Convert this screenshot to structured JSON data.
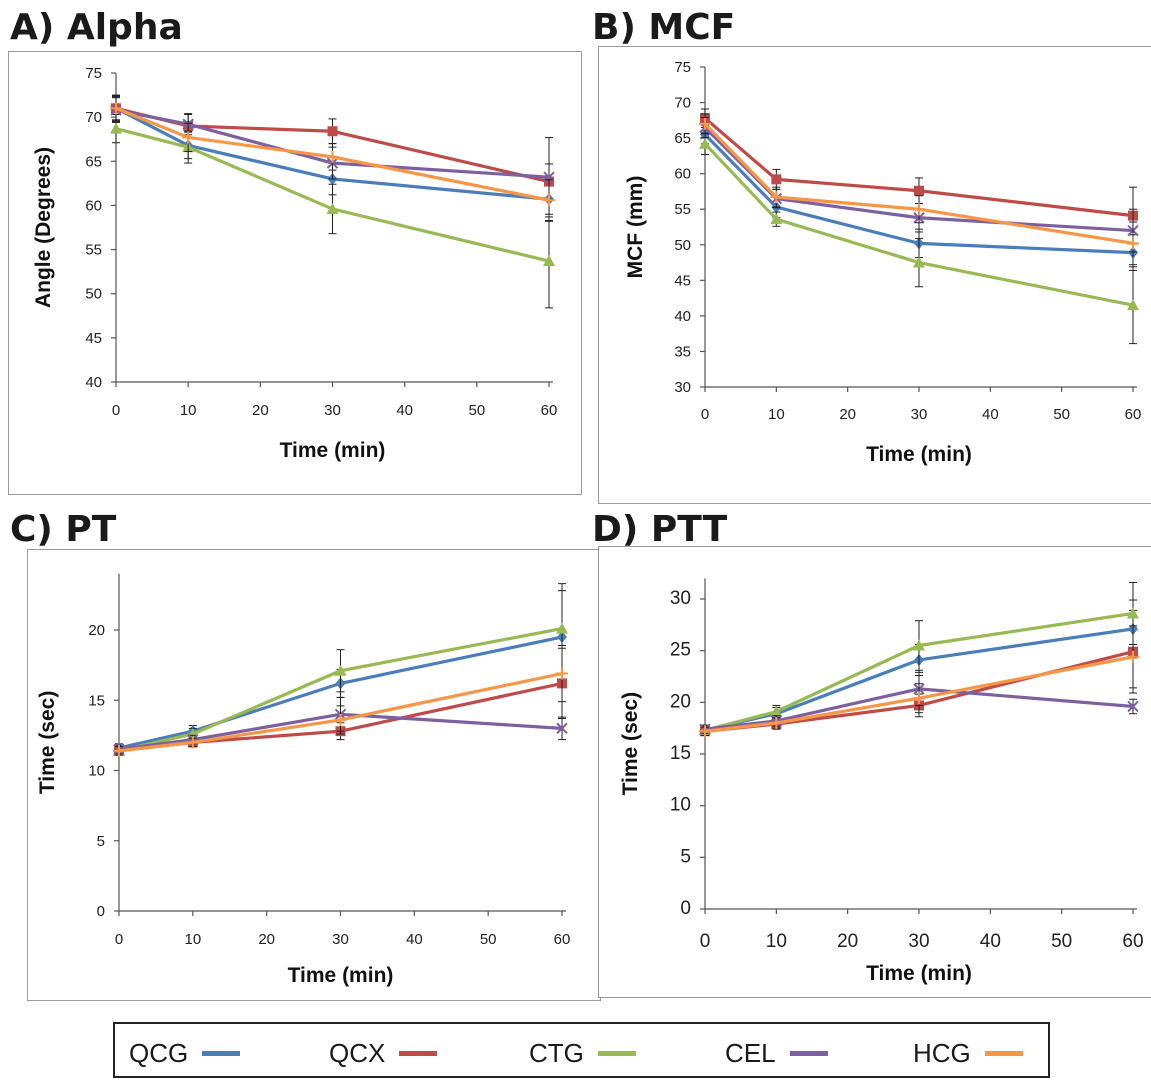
{
  "legend": {
    "items": [
      {
        "label": "QCG",
        "color": "#4a7ebb"
      },
      {
        "label": "QCX",
        "color": "#be4b48"
      },
      {
        "label": "CTG",
        "color": "#98b954"
      },
      {
        "label": "CEL",
        "color": "#7d60a0"
      },
      {
        "label": "HCG",
        "color": "#f79646"
      }
    ]
  },
  "chart_data": [
    {
      "type": "line",
      "title": "A) Alpha",
      "xlabel": "Time (min)",
      "ylabel": "Angle (Degrees)",
      "x": [
        0,
        10,
        30,
        60
      ],
      "xlim": [
        0,
        60
      ],
      "ylim": [
        40,
        75
      ],
      "xticks": [
        0,
        10,
        20,
        30,
        40,
        50,
        60
      ],
      "yticks": [
        40,
        45,
        50,
        55,
        60,
        65,
        70,
        75
      ],
      "series": [
        {
          "name": "QCG",
          "values": [
            71.0,
            66.8,
            63.0,
            60.7
          ],
          "errors": [
            1.3,
            1.5,
            1.8,
            2.5
          ]
        },
        {
          "name": "QCX",
          "values": [
            71.0,
            69.0,
            68.4,
            62.7
          ],
          "errors": [
            1.4,
            1.3,
            1.4,
            2.0
          ]
        },
        {
          "name": "CTG",
          "values": [
            68.7,
            66.6,
            59.6,
            53.7
          ],
          "errors": [
            1.6,
            1.8,
            2.8,
            5.3
          ]
        },
        {
          "name": "CEL",
          "values": [
            70.8,
            69.2,
            64.8,
            63.2
          ],
          "errors": [
            1.4,
            1.2,
            1.8,
            4.5
          ]
        },
        {
          "name": "HCG",
          "values": [
            71.0,
            67.7,
            65.5,
            60.6
          ],
          "errors": [
            1.5,
            1.6,
            1.5,
            2.3
          ]
        }
      ]
    },
    {
      "type": "line",
      "title": "B) MCF",
      "xlabel": "Time (min)",
      "ylabel": "MCF (mm)",
      "x": [
        0,
        10,
        30,
        60
      ],
      "xlim": [
        0,
        60
      ],
      "ylim": [
        30,
        75
      ],
      "xticks": [
        0,
        10,
        20,
        30,
        40,
        50,
        60
      ],
      "yticks": [
        30,
        35,
        40,
        45,
        50,
        55,
        60,
        65,
        70,
        75
      ],
      "series": [
        {
          "name": "QCG",
          "values": [
            65.5,
            55.3,
            50.2,
            48.9
          ],
          "errors": [
            1.3,
            1.5,
            2.0,
            2.5
          ]
        },
        {
          "name": "QCX",
          "values": [
            67.8,
            59.2,
            57.6,
            54.1
          ],
          "errors": [
            1.3,
            1.4,
            1.8,
            4.0
          ]
        },
        {
          "name": "CTG",
          "values": [
            64.2,
            53.6,
            47.5,
            41.5
          ],
          "errors": [
            1.5,
            1.0,
            3.4,
            5.4
          ]
        },
        {
          "name": "CEL",
          "values": [
            66.5,
            56.5,
            53.8,
            52.0
          ],
          "errors": [
            1.4,
            1.3,
            2.0,
            3.0
          ]
        },
        {
          "name": "HCG",
          "values": [
            67.0,
            56.7,
            55.0,
            50.2
          ],
          "errors": [
            1.4,
            1.4,
            1.9,
            3.0
          ]
        }
      ]
    },
    {
      "type": "line",
      "title": "C) PT",
      "xlabel": "Time (min)",
      "ylabel": "Time (sec)",
      "x": [
        0,
        10,
        30,
        60
      ],
      "xlim": [
        0,
        60
      ],
      "ylim": [
        0,
        24
      ],
      "xticks": [
        0,
        10,
        20,
        30,
        40,
        50,
        60
      ],
      "yticks": [
        0,
        5,
        10,
        15,
        20
      ],
      "series": [
        {
          "name": "QCG",
          "values": [
            11.6,
            12.8,
            16.2,
            19.5
          ],
          "errors": [
            0.3,
            0.4,
            1.0,
            3.3
          ]
        },
        {
          "name": "QCX",
          "values": [
            11.4,
            12.0,
            12.8,
            16.2
          ],
          "errors": [
            0.3,
            0.3,
            0.6,
            2.5
          ]
        },
        {
          "name": "CTG",
          "values": [
            11.4,
            12.6,
            17.1,
            20.1
          ],
          "errors": [
            0.3,
            0.4,
            1.5,
            3.2
          ]
        },
        {
          "name": "CEL",
          "values": [
            11.5,
            12.2,
            14.0,
            13.0
          ],
          "errors": [
            0.3,
            0.3,
            1.2,
            0.8
          ]
        },
        {
          "name": "HCG",
          "values": [
            11.4,
            12.0,
            13.6,
            16.9
          ],
          "errors": [
            0.3,
            0.3,
            1.0,
            2.0
          ]
        }
      ]
    },
    {
      "type": "line",
      "title": "D) PTT",
      "xlabel": "Time (min)",
      "ylabel": "Time (sec)",
      "x": [
        0,
        10,
        30,
        60
      ],
      "xlim": [
        0,
        60
      ],
      "ylim": [
        0,
        32
      ],
      "xticks": [
        0,
        10,
        20,
        30,
        40,
        50,
        60
      ],
      "yticks": [
        0,
        5,
        10,
        15,
        20,
        25,
        30
      ],
      "series": [
        {
          "name": "QCG",
          "values": [
            17.3,
            18.9,
            24.1,
            27.1
          ],
          "errors": [
            0.4,
            0.6,
            1.5,
            2.8
          ]
        },
        {
          "name": "QCX",
          "values": [
            17.2,
            17.9,
            19.7,
            24.9
          ],
          "errors": [
            0.4,
            0.5,
            1.1,
            4.0
          ]
        },
        {
          "name": "CTG",
          "values": [
            17.3,
            19.1,
            25.5,
            28.6
          ],
          "errors": [
            0.4,
            0.6,
            2.4,
            3.0
          ]
        },
        {
          "name": "CEL",
          "values": [
            17.4,
            18.2,
            21.3,
            19.6
          ],
          "errors": [
            0.4,
            0.5,
            1.6,
            0.7
          ]
        },
        {
          "name": "HCG",
          "values": [
            17.2,
            18.0,
            20.4,
            24.4
          ],
          "errors": [
            0.4,
            0.5,
            1.4,
            3.0
          ]
        }
      ]
    }
  ]
}
